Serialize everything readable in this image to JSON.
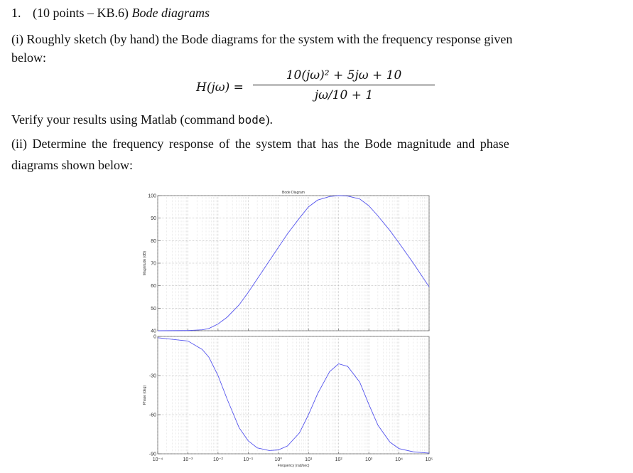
{
  "problem": {
    "number": "1.",
    "points": "(10 points – KB.6)",
    "title": "Bode diagrams"
  },
  "part_i": {
    "line1": "(i) Roughly sketch (by hand) the Bode diagrams for the system with the frequency response given",
    "line2": "below:",
    "equation": {
      "lhs": "H(jω) =",
      "numerator": "10(jω)² + 5jω + 10",
      "denominator": "jω/10 + 1"
    },
    "verify_prefix": "Verify your results using Matlab (command ",
    "verify_command": "bode",
    "verify_suffix": ")."
  },
  "part_ii": {
    "line1": "(ii) Determine the frequency response of the system that has the Bode magnitude and phase",
    "line2": "diagrams shown below:"
  },
  "chart_data": {
    "type": "line",
    "title": "Bode Diagram",
    "xlabel": "Frequency (rad/sec)",
    "x_scale": "log",
    "x_tick_labels": [
      "10⁻⁴",
      "10⁻³",
      "10⁻²",
      "10⁻¹",
      "10⁰",
      "10¹",
      "10²",
      "10³",
      "10⁴",
      "10⁵"
    ],
    "x_tick_values": [
      0.0001,
      0.001,
      0.01,
      0.1,
      1,
      10,
      100,
      1000,
      10000,
      100000
    ],
    "grid": true,
    "line_color": "#5555ee",
    "magnitude": {
      "ylabel": "Magnitude (dB)",
      "ylim": [
        40,
        100
      ],
      "y_ticks": [
        40,
        50,
        60,
        70,
        80,
        90,
        100
      ],
      "x": [
        0.0001,
        0.001,
        0.003,
        0.005,
        0.01,
        0.02,
        0.05,
        0.1,
        0.2,
        0.5,
        1,
        2,
        5,
        10,
        20,
        50,
        100,
        200,
        500,
        1000,
        2000,
        5000,
        10000,
        30000,
        100000
      ],
      "y": [
        40,
        40.1,
        40.4,
        41,
        43,
        46,
        51.5,
        57,
        63,
        71,
        77,
        83,
        90,
        95,
        98,
        99.6,
        100,
        99.8,
        98.5,
        95.5,
        91,
        84.5,
        79,
        70,
        59.5
      ]
    },
    "phase": {
      "ylabel": "Phase (deg)",
      "ylim": [
        -90,
        0
      ],
      "y_ticks": [
        -90,
        -60,
        -30,
        0
      ],
      "x": [
        0.0001,
        0.001,
        0.003,
        0.005,
        0.01,
        0.02,
        0.05,
        0.1,
        0.2,
        0.5,
        1,
        2,
        5,
        10,
        20,
        50,
        100,
        200,
        500,
        1000,
        2000,
        5000,
        10000,
        30000,
        100000
      ],
      "y": [
        -1,
        -3.5,
        -10,
        -16,
        -30,
        -48,
        -70,
        -80,
        -85.5,
        -87.5,
        -87,
        -84,
        -74,
        -60,
        -44,
        -27,
        -21,
        -23,
        -35,
        -52,
        -68,
        -81,
        -86,
        -88.5,
        -89.5
      ]
    }
  }
}
